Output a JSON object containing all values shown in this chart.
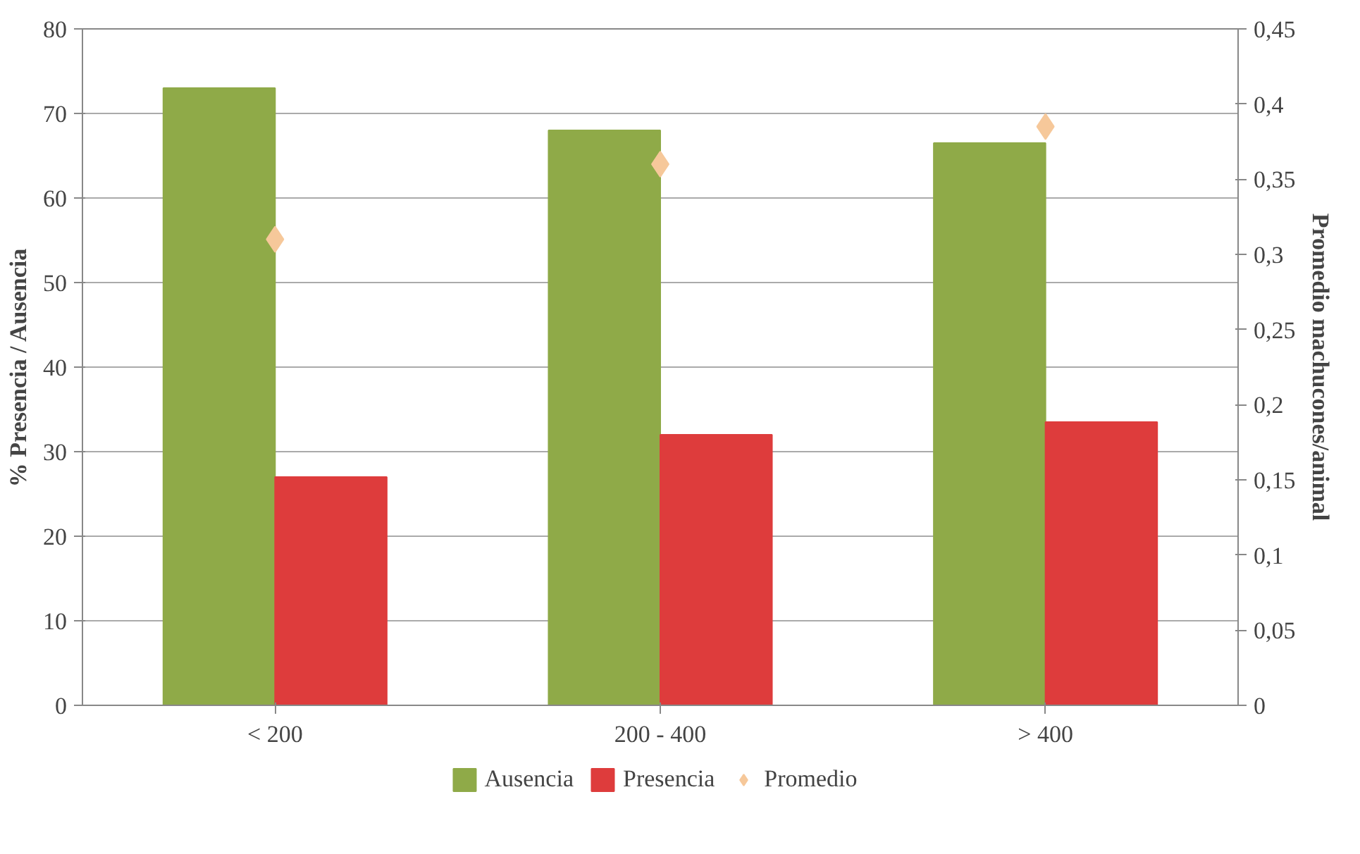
{
  "chart_data": {
    "type": "bar",
    "categories": [
      "< 200",
      "200 - 400",
      "> 400"
    ],
    "ylabel": "% Presencia / Ausencia",
    "y2label": "Promedio machucones/animal",
    "ylim": [
      0,
      80
    ],
    "yticks": [
      0,
      10,
      20,
      30,
      40,
      50,
      60,
      70,
      80
    ],
    "y2lim": [
      0,
      0.45
    ],
    "y2ticks": [
      {
        "value": 0,
        "label": "0"
      },
      {
        "value": 0.05,
        "label": "0,05"
      },
      {
        "value": 0.1,
        "label": "0,1"
      },
      {
        "value": 0.15,
        "label": "0,15"
      },
      {
        "value": 0.2,
        "label": "0,2"
      },
      {
        "value": 0.25,
        "label": "0,25"
      },
      {
        "value": 0.3,
        "label": "0,3"
      },
      {
        "value": 0.35,
        "label": "0,35"
      },
      {
        "value": 0.4,
        "label": "0,4"
      },
      {
        "value": 0.45,
        "label": "0,45"
      }
    ],
    "grid": "y",
    "legend": "bottom",
    "series": [
      {
        "name": "Ausencia",
        "color": "#8faa48",
        "values": [
          73,
          68,
          66.5
        ]
      },
      {
        "name": "Presencia",
        "color": "#de3c3c",
        "values": [
          27,
          32,
          33.5
        ]
      },
      {
        "name": "Promedio",
        "color": "#f6c89a",
        "type": "scatter",
        "marker": "diamond",
        "axis": "y2",
        "values": [
          0.31,
          0.36,
          0.385
        ]
      }
    ]
  }
}
